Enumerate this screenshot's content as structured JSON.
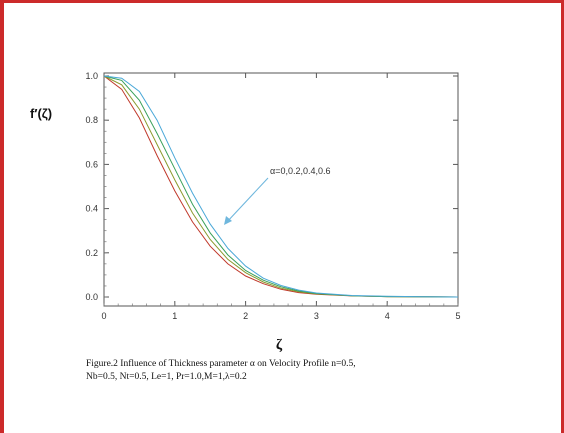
{
  "chart_data": {
    "type": "line",
    "ylabel": "f′(ζ)",
    "xlabel": "ζ",
    "xlim": [
      0,
      5
    ],
    "ylim": [
      0,
      1
    ],
    "x_ticks": [
      "0",
      "1",
      "2",
      "3",
      "4",
      "5"
    ],
    "y_ticks": [
      "0.0",
      "0.2",
      "0.4",
      "0.6",
      "0.8",
      "1.0"
    ],
    "annotation": "α=0,0.2,0.4,0.6",
    "grid": false,
    "x": [
      0,
      0.25,
      0.5,
      0.75,
      1,
      1.25,
      1.5,
      1.75,
      2,
      2.25,
      2.5,
      2.75,
      3,
      3.5,
      4,
      4.5,
      5
    ],
    "series": [
      {
        "values": [
          1.0,
          0.94,
          0.81,
          0.64,
          0.48,
          0.34,
          0.23,
          0.15,
          0.095,
          0.06,
          0.035,
          0.02,
          0.012,
          0.005,
          0.002,
          0.001,
          0.0
        ]
      },
      {
        "values": [
          1.0,
          0.96,
          0.85,
          0.69,
          0.53,
          0.38,
          0.26,
          0.17,
          0.11,
          0.068,
          0.04,
          0.024,
          0.014,
          0.006,
          0.002,
          0.001,
          0.0
        ]
      },
      {
        "values": [
          1.0,
          0.98,
          0.89,
          0.74,
          0.58,
          0.42,
          0.29,
          0.19,
          0.12,
          0.076,
          0.046,
          0.027,
          0.016,
          0.006,
          0.002,
          0.001,
          0.0
        ]
      },
      {
        "values": [
          1.0,
          0.99,
          0.93,
          0.8,
          0.63,
          0.47,
          0.33,
          0.22,
          0.14,
          0.085,
          0.052,
          0.031,
          0.018,
          0.007,
          0.003,
          0.001,
          0.0
        ]
      }
    ],
    "colors": [
      "#c0392b",
      "#8b9a2e",
      "#3aa05a",
      "#4aa8d8"
    ]
  },
  "caption": {
    "line1": "Figure.2 Influence of  Thickness parameter α on  Velocity Profile n=0.5,",
    "line2": "Nb=0.5, Nt=0.5, Le=1, Pr=1.0,M=1,λ=0.2"
  }
}
